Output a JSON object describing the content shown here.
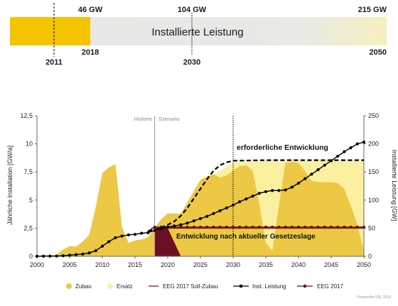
{
  "timeline": {
    "title": "Installierte Leistung",
    "top_labels": [
      "46 GW",
      "104 GW",
      "215 GW"
    ],
    "bottom_labels": [
      "2011",
      "2018",
      "2030",
      "2050"
    ],
    "colors": {
      "filled": "#f5c400",
      "empty": "#e6e6e6",
      "future": "#f8efbe"
    }
  },
  "chart_data": {
    "type": "area",
    "x_range": [
      2000,
      2050
    ],
    "xticks": [
      2000,
      2005,
      2010,
      2015,
      2020,
      2025,
      2030,
      2035,
      2040,
      2045,
      2050
    ],
    "y_left": {
      "label": "Jährliche Installation [GW/a]",
      "range": [
        0,
        12.5
      ],
      "ticks": [
        "0",
        "2,5",
        "5",
        "7,5",
        "10",
        "12,5"
      ]
    },
    "y_right": {
      "label": "Installierte Leistung [GW]",
      "range": [
        0,
        250
      ],
      "ticks": [
        "0",
        "50",
        "100",
        "150",
        "200",
        "250"
      ]
    },
    "region_labels": [
      "Historie",
      "Szenario"
    ],
    "annotations": [
      "erforderliche Entwicklung",
      "Entwicklung nach aktueller Gesetzeslage"
    ],
    "source": "Fraunhofer ISE, 2019",
    "legend": [
      "Zubau",
      "Ersatz",
      "EEG 2017 Soll-Zubau",
      "Inst. Leistung",
      "EEG 2017"
    ],
    "colors": {
      "zubau": "#ecc844",
      "ersatz": "#faf0a0",
      "soll": "#8b1a1a",
      "inst": "#000000",
      "eeg": "#6b1020"
    },
    "series": [
      {
        "name": "Zubau",
        "axis": "left",
        "x": [
          2000,
          2001,
          2002,
          2003,
          2004,
          2005,
          2006,
          2007,
          2008,
          2009,
          2010,
          2011,
          2012,
          2013,
          2014,
          2015,
          2016,
          2017,
          2018,
          2019,
          2020,
          2021,
          2022,
          2023,
          2024,
          2025,
          2026,
          2027,
          2028,
          2029,
          2030,
          2031,
          2032,
          2033,
          2034,
          2035,
          2036,
          2037,
          2038,
          2039,
          2040,
          2041,
          2042,
          2043,
          2044,
          2045,
          2046,
          2047,
          2048,
          2049,
          2050
        ],
        "values": [
          0.05,
          0.1,
          0.1,
          0.15,
          0.6,
          0.9,
          0.85,
          1.3,
          1.9,
          4.4,
          7.4,
          7.9,
          8.2,
          2.6,
          1.2,
          1.4,
          1.5,
          1.7,
          2.5,
          3.3,
          3.8,
          3.8,
          3.8,
          4.8,
          5.8,
          6.8,
          7.1,
          7.3,
          7.0,
          7.2,
          7.6,
          8.0,
          8.1,
          7.6,
          4.7,
          1.2,
          0.5,
          4.5,
          8.3,
          8.4,
          8.3,
          7.6,
          6.7,
          6.6,
          6.6,
          6.6,
          6.5,
          6.0,
          4.5,
          2.8,
          0.5
        ]
      },
      {
        "name": "Ersatz",
        "axis": "left",
        "x": [
          2000,
          2001,
          2002,
          2003,
          2004,
          2005,
          2006,
          2007,
          2008,
          2009,
          2010,
          2011,
          2012,
          2013,
          2014,
          2015,
          2016,
          2017,
          2018,
          2019,
          2020,
          2021,
          2022,
          2023,
          2024,
          2025,
          2026,
          2027,
          2028,
          2029,
          2030,
          2031,
          2032,
          2033,
          2034,
          2035,
          2036,
          2037,
          2038,
          2039,
          2040,
          2041,
          2042,
          2043,
          2044,
          2045,
          2046,
          2047,
          2048,
          2049,
          2050
        ],
        "values": [
          0.05,
          0.1,
          0.1,
          0.15,
          0.6,
          0.9,
          0.85,
          1.3,
          1.9,
          4.4,
          7.4,
          7.9,
          8.2,
          2.6,
          1.2,
          1.4,
          1.5,
          1.7,
          2.5,
          3.3,
          3.8,
          3.8,
          3.8,
          4.8,
          5.8,
          6.8,
          7.1,
          7.3,
          7.6,
          8.0,
          8.3,
          8.4,
          8.5,
          8.5,
          8.5,
          8.5,
          8.5,
          8.5,
          8.5,
          8.5,
          8.5,
          8.5,
          8.5,
          8.5,
          8.5,
          8.5,
          8.5,
          8.5,
          8.5,
          8.5,
          8.5
        ]
      },
      {
        "name": "EEG 2017 Soll-Zubau",
        "axis": "left",
        "x": [
          2017.5,
          2050
        ],
        "values": [
          2.5,
          2.5
        ]
      },
      {
        "name": "EEG 2017",
        "axis": "left",
        "x": [
          2018,
          2020,
          2022,
          2050
        ],
        "values": [
          2.5,
          2.5,
          0,
          0
        ]
      },
      {
        "name": "Inst. Leistung",
        "axis": "right",
        "x": [
          2000,
          2001,
          2002,
          2003,
          2004,
          2005,
          2006,
          2007,
          2008,
          2009,
          2010,
          2011,
          2012,
          2013,
          2014,
          2015,
          2016,
          2017,
          2018,
          2019,
          2020,
          2021,
          2022,
          2023,
          2024,
          2025,
          2026,
          2027,
          2028,
          2029,
          2030,
          2031,
          2032,
          2033,
          2034,
          2035,
          2036,
          2037,
          2038,
          2039,
          2040,
          2041,
          2042,
          2043,
          2044,
          2045,
          2046,
          2047,
          2048,
          2049,
          2050
        ],
        "values": [
          0.1,
          0.2,
          0.3,
          0.4,
          1,
          2,
          3,
          4,
          6,
          10,
          18,
          26,
          33,
          36,
          38,
          39,
          41,
          42,
          46,
          49,
          52,
          54,
          56,
          59,
          63,
          67,
          71,
          76,
          81,
          86,
          91,
          97,
          102,
          107,
          112,
          115,
          117,
          117,
          118,
          123,
          130,
          138,
          146,
          154,
          162,
          170,
          178,
          186,
          193,
          200,
          203
        ]
      },
      {
        "name": "erforderliche Entwicklung",
        "axis": "right",
        "x": [
          2017,
          2018,
          2019,
          2020,
          2021,
          2022,
          2023,
          2024,
          2025,
          2026,
          2027,
          2028,
          2029,
          2030,
          2035,
          2040,
          2045,
          2050
        ],
        "values": [
          45,
          47,
          51,
          56,
          62,
          72,
          86,
          103,
          120,
          137,
          152,
          162,
          167,
          170,
          171,
          171,
          171,
          171
        ]
      },
      {
        "name": "Entwicklung nach aktueller Gesetzeslage",
        "axis": "right",
        "x": [
          2017,
          2018,
          2030,
          2040,
          2050
        ],
        "values": [
          45,
          52,
          52,
          52,
          52
        ]
      }
    ]
  }
}
